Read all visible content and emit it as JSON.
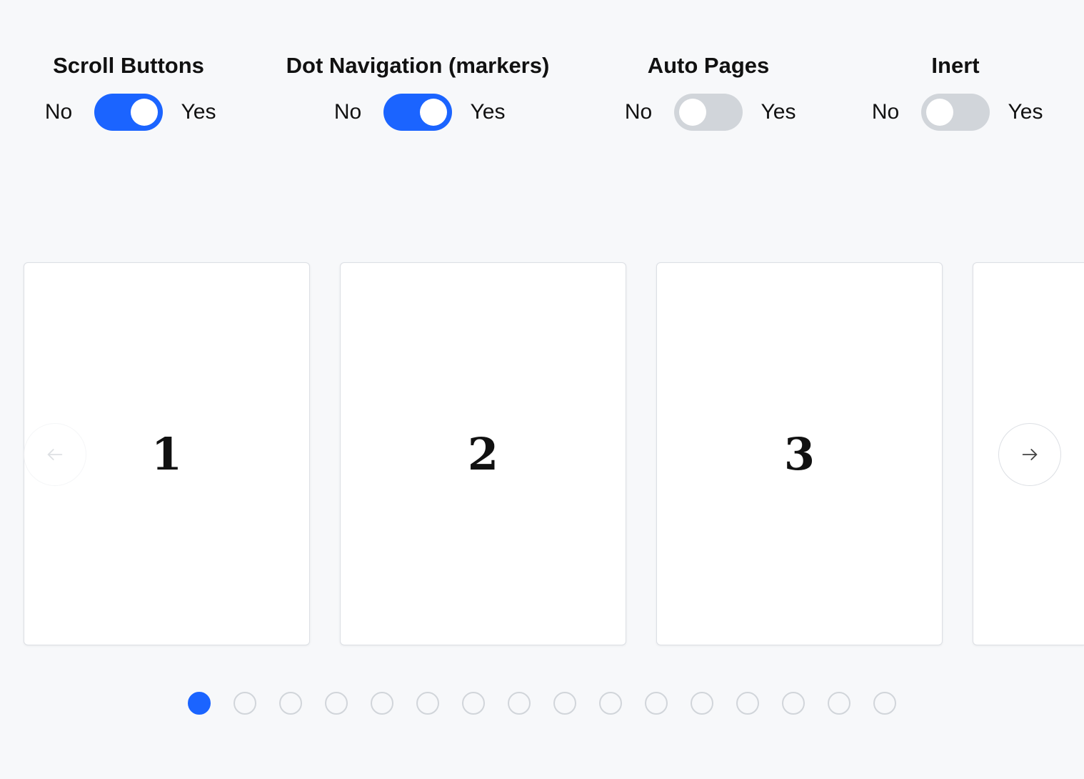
{
  "controls": [
    {
      "title": "Scroll Buttons",
      "no": "No",
      "yes": "Yes",
      "on": true
    },
    {
      "title": "Dot Navigation (markers)",
      "no": "No",
      "yes": "Yes",
      "on": true
    },
    {
      "title": "Auto Pages",
      "no": "No",
      "yes": "Yes",
      "on": false
    },
    {
      "title": "Inert",
      "no": "No",
      "yes": "Yes",
      "on": false
    }
  ],
  "slides": [
    "1",
    "2",
    "3",
    ""
  ],
  "prev_button": {
    "icon": "arrow-left-icon",
    "disabled": true
  },
  "next_button": {
    "icon": "arrow-right-icon",
    "disabled": false
  },
  "dots": {
    "count": 16,
    "active_index": 0
  },
  "colors": {
    "accent": "#1b64ff",
    "toggle_off": "#d1d5da",
    "background": "#f7f8fa"
  }
}
